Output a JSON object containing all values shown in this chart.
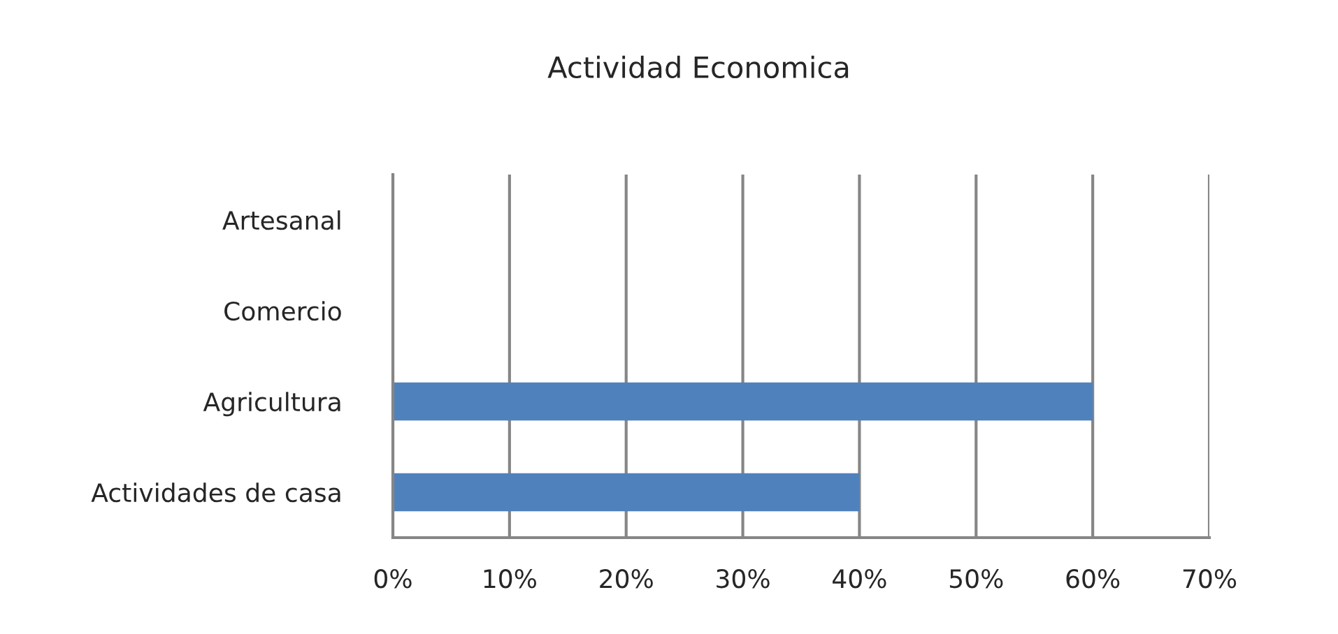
{
  "chart_data": {
    "type": "bar",
    "orientation": "horizontal",
    "title": "Actividad Economica",
    "categories": [
      "Artesanal",
      "Comercio",
      "Agricultura",
      "Actividades de casa"
    ],
    "values": [
      0,
      0,
      60,
      40
    ],
    "color": "#4f81bd",
    "xlim": [
      0,
      70
    ],
    "xticks": [
      {
        "value": 0,
        "label": "0%"
      },
      {
        "value": 10,
        "label": "10%"
      },
      {
        "value": 20,
        "label": "20%"
      },
      {
        "value": 30,
        "label": "30%"
      },
      {
        "value": 40,
        "label": "40%"
      },
      {
        "value": 50,
        "label": "50%"
      },
      {
        "value": 60,
        "label": "60%"
      },
      {
        "value": 70,
        "label": "70%"
      }
    ],
    "grid": "x"
  }
}
